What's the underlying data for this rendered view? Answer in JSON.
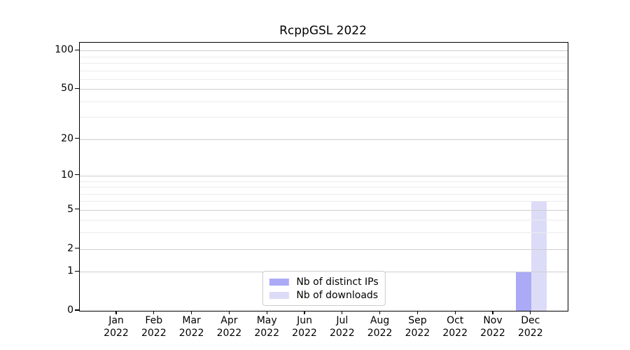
{
  "chart_data": {
    "type": "bar",
    "title": "RcppGSL 2022",
    "categories": [
      {
        "month": "Jan",
        "year": "2022"
      },
      {
        "month": "Feb",
        "year": "2022"
      },
      {
        "month": "Mar",
        "year": "2022"
      },
      {
        "month": "Apr",
        "year": "2022"
      },
      {
        "month": "May",
        "year": "2022"
      },
      {
        "month": "Jun",
        "year": "2022"
      },
      {
        "month": "Jul",
        "year": "2022"
      },
      {
        "month": "Aug",
        "year": "2022"
      },
      {
        "month": "Sep",
        "year": "2022"
      },
      {
        "month": "Oct",
        "year": "2022"
      },
      {
        "month": "Nov",
        "year": "2022"
      },
      {
        "month": "Dec",
        "year": "2022"
      }
    ],
    "series": [
      {
        "name": "Nb of distinct IPs",
        "color": "#abaaf7",
        "values": [
          0,
          0,
          0,
          0,
          0,
          0,
          0,
          0,
          0,
          0,
          0,
          1
        ]
      },
      {
        "name": "Nb of downloads",
        "color": "#dcdcf8",
        "values": [
          0,
          0,
          0,
          0,
          0,
          0,
          0,
          0,
          0,
          0,
          0,
          6
        ]
      }
    ],
    "y_axis": {
      "scale": "log1p",
      "ticks": [
        0,
        1,
        2,
        5,
        10,
        20,
        50,
        100
      ],
      "minor_ticks": [
        3,
        4,
        6,
        7,
        8,
        9,
        30,
        40,
        60,
        70,
        80,
        90
      ],
      "top_value": 115
    },
    "legend": {
      "position": "lower center"
    },
    "grid": true,
    "colors": {
      "major_grid": "#cecece",
      "minor_grid": "#ececec",
      "axis": "#000000",
      "legend_border": "#cccccc"
    }
  }
}
